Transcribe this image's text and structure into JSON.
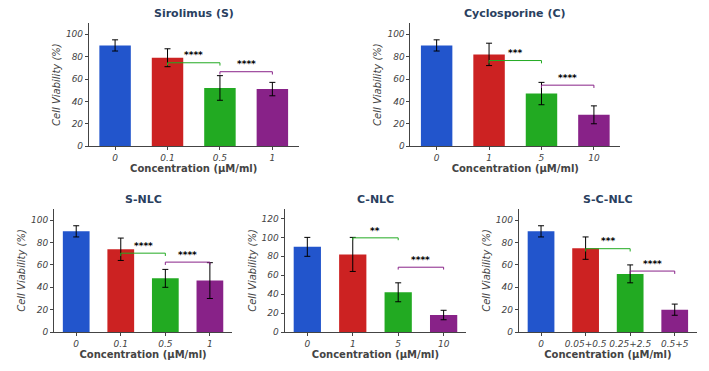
{
  "chart_data": [
    {
      "type": "bar",
      "title": "Sirolimus (S)",
      "xlabel": "Concentration (μM/ml)",
      "ylabel": "Cell Viability (%)",
      "categories": [
        "0",
        "0.1",
        "0.5",
        "1"
      ],
      "values": [
        90,
        79,
        52,
        51
      ],
      "errors": [
        5,
        8,
        11,
        6
      ],
      "colors": [
        "#2255CC",
        "#CC2222",
        "#22AA22",
        "#882288"
      ],
      "ylim": [
        0,
        110
      ],
      "yticks": [
        0,
        20,
        40,
        60,
        80,
        100
      ],
      "grid": false,
      "brackets": [
        {
          "from": "0.1",
          "to": "0.5",
          "y": 72,
          "label": "****",
          "color": "#22AA22"
        },
        {
          "from": "0.5",
          "to": "1",
          "y": 64,
          "label": "****",
          "color": "#882288"
        }
      ]
    },
    {
      "type": "bar",
      "title": "Cyclosporine (C)",
      "xlabel": "Concentration (μM/ml)",
      "ylabel": "Cell Viability (%)",
      "categories": [
        "0",
        "1",
        "5",
        "10"
      ],
      "values": [
        90,
        82,
        47,
        28
      ],
      "errors": [
        5,
        10,
        10,
        8
      ],
      "colors": [
        "#2255CC",
        "#CC2222",
        "#22AA22",
        "#882288"
      ],
      "ylim": [
        0,
        110
      ],
      "yticks": [
        0,
        20,
        40,
        60,
        80,
        100
      ],
      "grid": false,
      "brackets": [
        {
          "from": "1",
          "to": "5",
          "y": 74,
          "label": "***",
          "color": "#22AA22"
        },
        {
          "from": "5",
          "to": "10",
          "y": 52,
          "label": "****",
          "color": "#882288"
        }
      ]
    },
    {
      "type": "bar",
      "title": "S-NLC",
      "xlabel": "Concentration (μM/ml)",
      "ylabel": "Cell Viability (%)",
      "categories": [
        "0",
        "0.1",
        "0.5",
        "1"
      ],
      "values": [
        90,
        74,
        48,
        46
      ],
      "errors": [
        5,
        10,
        8,
        16
      ],
      "colors": [
        "#2255CC",
        "#CC2222",
        "#22AA22",
        "#882288"
      ],
      "ylim": [
        0,
        110
      ],
      "yticks": [
        0,
        20,
        40,
        60,
        80,
        100
      ],
      "grid": false,
      "brackets": [
        {
          "from": "0.1",
          "to": "0.5",
          "y": 68,
          "label": "****",
          "color": "#22AA22"
        },
        {
          "from": "0.5",
          "to": "1",
          "y": 60,
          "label": "****",
          "color": "#882288"
        }
      ]
    },
    {
      "type": "bar",
      "title": "C-NLC",
      "xlabel": "Concentration (μM/ml)",
      "ylabel": "Cell Viability (%)",
      "categories": [
        "0",
        "1",
        "5",
        "10"
      ],
      "values": [
        90,
        82,
        42,
        18
      ],
      "errors": [
        10,
        18,
        10,
        5
      ],
      "colors": [
        "#2255CC",
        "#CC2222",
        "#22AA22",
        "#882288"
      ],
      "ylim": [
        0,
        130
      ],
      "yticks": [
        0,
        20,
        40,
        60,
        80,
        100,
        120
      ],
      "grid": false,
      "brackets": [
        {
          "from": "1",
          "to": "5",
          "y": 97,
          "label": "**",
          "color": "#22AA22"
        },
        {
          "from": "5",
          "to": "10",
          "y": 66,
          "label": "****",
          "color": "#882288"
        }
      ]
    },
    {
      "type": "bar",
      "title": "S-C-NLC",
      "xlabel": "Concentration (μM/ml)",
      "ylabel": "Cell Viability (%)",
      "categories": [
        "0",
        "0.05+0.5",
        "0.25+2.5",
        "0.5+5"
      ],
      "values": [
        90,
        75,
        52,
        20
      ],
      "errors": [
        5,
        10,
        8,
        5
      ],
      "colors": [
        "#2255CC",
        "#CC2222",
        "#22AA22",
        "#882288"
      ],
      "ylim": [
        0,
        110
      ],
      "yticks": [
        0,
        20,
        40,
        60,
        80,
        100
      ],
      "grid": false,
      "brackets": [
        {
          "from": "0.05+0.5",
          "to": "0.25+2.5",
          "y": 72,
          "label": "***",
          "color": "#22AA22"
        },
        {
          "from": "0.25+2.5",
          "to": "0.5+5",
          "y": 52,
          "label": "****",
          "color": "#882288"
        }
      ]
    }
  ]
}
